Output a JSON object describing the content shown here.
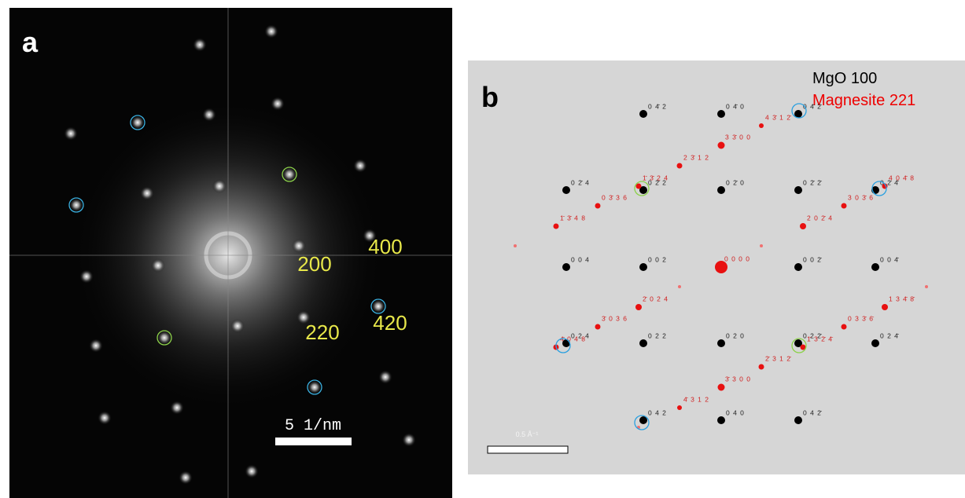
{
  "panel_a": {
    "label": "a",
    "annotations": [
      "200",
      "400",
      "220",
      "420"
    ],
    "scale_bar": "5 1/nm"
  },
  "panel_b": {
    "label": "b",
    "legend": [
      "MgO 100",
      "Magnesite 221"
    ],
    "scale_bar": "0.5 Å⁻¹",
    "mgo_labels": [
      "0 4̄ 2",
      "0 4̄ 0",
      "0 4̄ 2̄",
      "0 2̄ 4",
      "0 2̄ 2",
      "0 2̄ 0",
      "0 2̄ 2̄",
      "0 2̄ 4̄",
      "0 0 4",
      "0 0 2",
      "0 0 2̄",
      "0 0 4̄",
      "0 2 4",
      "0 2 2",
      "0 2 0",
      "0 2 2̄",
      "0 2 4̄",
      "0 4 2",
      "0 4 0",
      "0 4 2̄"
    ],
    "magnesite_labels": [
      "0 0 0 0",
      "1̄ 3̄ 4 8",
      "0 3̄ 3 6",
      "1̄ 3̄ 2 4",
      "2 3̄ 1 2",
      "3 3̄ 0 0",
      "4 3̄ 1 2̄",
      "4 0 4̄ 8",
      "3 0 3̄ 6",
      "2 0 2̄ 4",
      "2̄ 0 2 4",
      "3̄ 0 3 6",
      "4̄ 0 4 8",
      "1 3 4̄ 8̄",
      "0 3 3̄ 6̄",
      "1̄ 3 2̄ 4̄",
      "2̄ 3 1 2̄",
      "3̄ 3 0 0",
      "4̄ 3 1 2"
    ]
  }
}
